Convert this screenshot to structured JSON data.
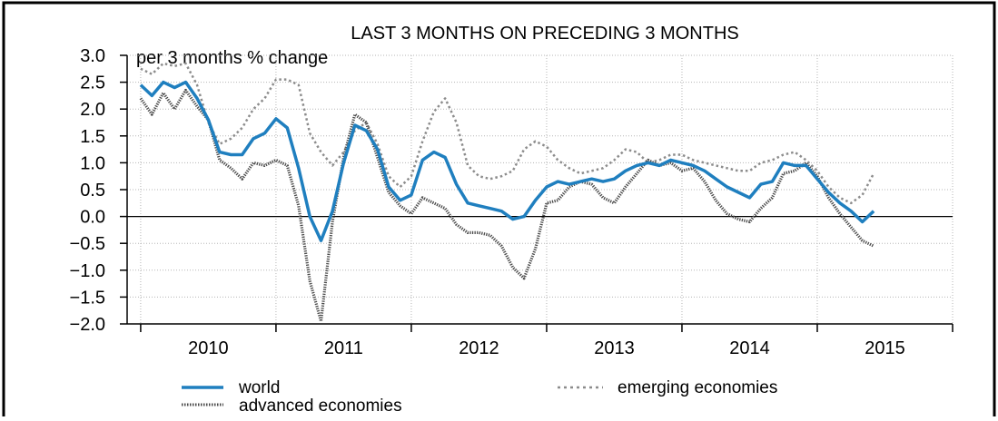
{
  "chart_data": {
    "type": "line",
    "title": "LAST 3 MONTHS ON PRECEDING 3 MONTHS",
    "ylabel": "per 3 months % change",
    "xlabel": "",
    "ylim": [
      -2.0,
      3.0
    ],
    "xlim": [
      2009.9,
      2016.0
    ],
    "y_ticks": [
      3.0,
      2.5,
      2.0,
      1.5,
      1.0,
      0.5,
      0.0,
      -0.5,
      -1.0,
      -1.5,
      -2.0
    ],
    "y_tick_labels": [
      "3.0",
      "2.5",
      "2.0",
      "1.5",
      "1.0",
      "0.5",
      "0.0",
      "−0.5",
      "−1.0",
      "−1.5",
      "−2.0"
    ],
    "x_boundaries": [
      2010,
      2011,
      2012,
      2013,
      2014,
      2015,
      2016
    ],
    "x_tick_labels": [
      "2010",
      "2011",
      "2012",
      "2013",
      "2014",
      "2015"
    ],
    "grid": true,
    "legend_position": "bottom",
    "series": [
      {
        "key": "world",
        "name": "world",
        "color": "#1f7fbf",
        "style": "solid",
        "x": [
          2010.0,
          2010.083,
          2010.167,
          2010.25,
          2010.333,
          2010.417,
          2010.5,
          2010.583,
          2010.667,
          2010.75,
          2010.833,
          2010.917,
          2011.0,
          2011.083,
          2011.167,
          2011.25,
          2011.333,
          2011.417,
          2011.5,
          2011.583,
          2011.667,
          2011.75,
          2011.833,
          2011.917,
          2012.0,
          2012.083,
          2012.167,
          2012.25,
          2012.333,
          2012.417,
          2012.5,
          2012.583,
          2012.667,
          2012.75,
          2012.833,
          2012.917,
          2013.0,
          2013.083,
          2013.167,
          2013.25,
          2013.333,
          2013.417,
          2013.5,
          2013.583,
          2013.667,
          2013.75,
          2013.833,
          2013.917,
          2014.0,
          2014.083,
          2014.167,
          2014.25,
          2014.333,
          2014.417,
          2014.5,
          2014.583,
          2014.667,
          2014.75,
          2014.833,
          2014.917,
          2015.0,
          2015.083,
          2015.167,
          2015.25,
          2015.333,
          2015.417
        ],
        "values": [
          2.45,
          2.25,
          2.5,
          2.4,
          2.5,
          2.2,
          1.8,
          1.2,
          1.15,
          1.15,
          1.45,
          1.55,
          1.82,
          1.65,
          0.9,
          0.0,
          -0.45,
          0.1,
          1.0,
          1.7,
          1.6,
          1.25,
          0.55,
          0.3,
          0.4,
          1.05,
          1.2,
          1.1,
          0.6,
          0.25,
          0.2,
          0.15,
          0.1,
          -0.05,
          0.0,
          0.3,
          0.55,
          0.65,
          0.6,
          0.65,
          0.7,
          0.65,
          0.7,
          0.85,
          0.95,
          1.0,
          0.95,
          1.05,
          1.0,
          0.95,
          0.85,
          0.7,
          0.55,
          0.45,
          0.35,
          0.6,
          0.65,
          1.0,
          0.95,
          0.95,
          0.7,
          0.45,
          0.25,
          0.1,
          -0.1,
          0.1
        ]
      },
      {
        "key": "emerging",
        "name": "emerging economies",
        "color": "#8c8c8c",
        "style": "dotted-light",
        "x": [
          2010.0,
          2010.083,
          2010.167,
          2010.25,
          2010.333,
          2010.417,
          2010.5,
          2010.583,
          2010.667,
          2010.75,
          2010.833,
          2010.917,
          2011.0,
          2011.083,
          2011.167,
          2011.25,
          2011.333,
          2011.417,
          2011.5,
          2011.583,
          2011.667,
          2011.75,
          2011.833,
          2011.917,
          2012.0,
          2012.083,
          2012.167,
          2012.25,
          2012.333,
          2012.417,
          2012.5,
          2012.583,
          2012.667,
          2012.75,
          2012.833,
          2012.917,
          2013.0,
          2013.083,
          2013.167,
          2013.25,
          2013.333,
          2013.417,
          2013.5,
          2013.583,
          2013.667,
          2013.75,
          2013.833,
          2013.917,
          2014.0,
          2014.083,
          2014.167,
          2014.25,
          2014.333,
          2014.417,
          2014.5,
          2014.583,
          2014.667,
          2014.75,
          2014.833,
          2014.917,
          2015.0,
          2015.083,
          2015.167,
          2015.25,
          2015.333,
          2015.417
        ],
        "values": [
          2.75,
          2.65,
          2.85,
          2.8,
          2.85,
          2.45,
          1.75,
          1.35,
          1.45,
          1.65,
          2.0,
          2.2,
          2.55,
          2.55,
          2.45,
          1.55,
          1.2,
          0.95,
          1.2,
          1.6,
          1.75,
          1.35,
          0.75,
          0.55,
          0.75,
          1.4,
          1.95,
          2.2,
          1.75,
          0.95,
          0.75,
          0.7,
          0.75,
          0.85,
          1.25,
          1.4,
          1.3,
          1.05,
          0.9,
          0.8,
          0.85,
          0.9,
          1.05,
          1.25,
          1.2,
          1.0,
          1.05,
          1.15,
          1.15,
          1.05,
          1.0,
          0.95,
          0.9,
          0.85,
          0.85,
          1.0,
          1.05,
          1.15,
          1.2,
          1.05,
          0.85,
          0.55,
          0.35,
          0.25,
          0.4,
          0.8
        ]
      },
      {
        "key": "advanced",
        "name": "advanced economies",
        "color": "#4a4a4a",
        "style": "dotted-dark",
        "x": [
          2010.0,
          2010.083,
          2010.167,
          2010.25,
          2010.333,
          2010.417,
          2010.5,
          2010.583,
          2010.667,
          2010.75,
          2010.833,
          2010.917,
          2011.0,
          2011.083,
          2011.167,
          2011.25,
          2011.333,
          2011.417,
          2011.5,
          2011.583,
          2011.667,
          2011.75,
          2011.833,
          2011.917,
          2012.0,
          2012.083,
          2012.167,
          2012.25,
          2012.333,
          2012.417,
          2012.5,
          2012.583,
          2012.667,
          2012.75,
          2012.833,
          2012.917,
          2013.0,
          2013.083,
          2013.167,
          2013.25,
          2013.333,
          2013.417,
          2013.5,
          2013.583,
          2013.667,
          2013.75,
          2013.833,
          2013.917,
          2014.0,
          2014.083,
          2014.167,
          2014.25,
          2014.333,
          2014.417,
          2014.5,
          2014.583,
          2014.667,
          2014.75,
          2014.833,
          2014.917,
          2015.0,
          2015.083,
          2015.167,
          2015.25,
          2015.333,
          2015.417
        ],
        "values": [
          2.2,
          1.9,
          2.3,
          2.0,
          2.35,
          2.05,
          1.8,
          1.05,
          0.9,
          0.7,
          1.0,
          0.95,
          1.05,
          0.95,
          0.2,
          -1.2,
          -1.95,
          -0.1,
          1.1,
          1.9,
          1.75,
          1.1,
          0.45,
          0.2,
          0.05,
          0.35,
          0.25,
          0.15,
          -0.15,
          -0.3,
          -0.3,
          -0.35,
          -0.55,
          -0.95,
          -1.15,
          -0.6,
          0.25,
          0.3,
          0.55,
          0.65,
          0.6,
          0.35,
          0.25,
          0.55,
          0.8,
          1.05,
          0.95,
          1.0,
          0.85,
          0.9,
          0.65,
          0.3,
          0.05,
          -0.05,
          -0.1,
          0.15,
          0.35,
          0.8,
          0.85,
          1.0,
          0.75,
          0.35,
          0.05,
          -0.2,
          -0.45,
          -0.55
        ]
      }
    ]
  }
}
